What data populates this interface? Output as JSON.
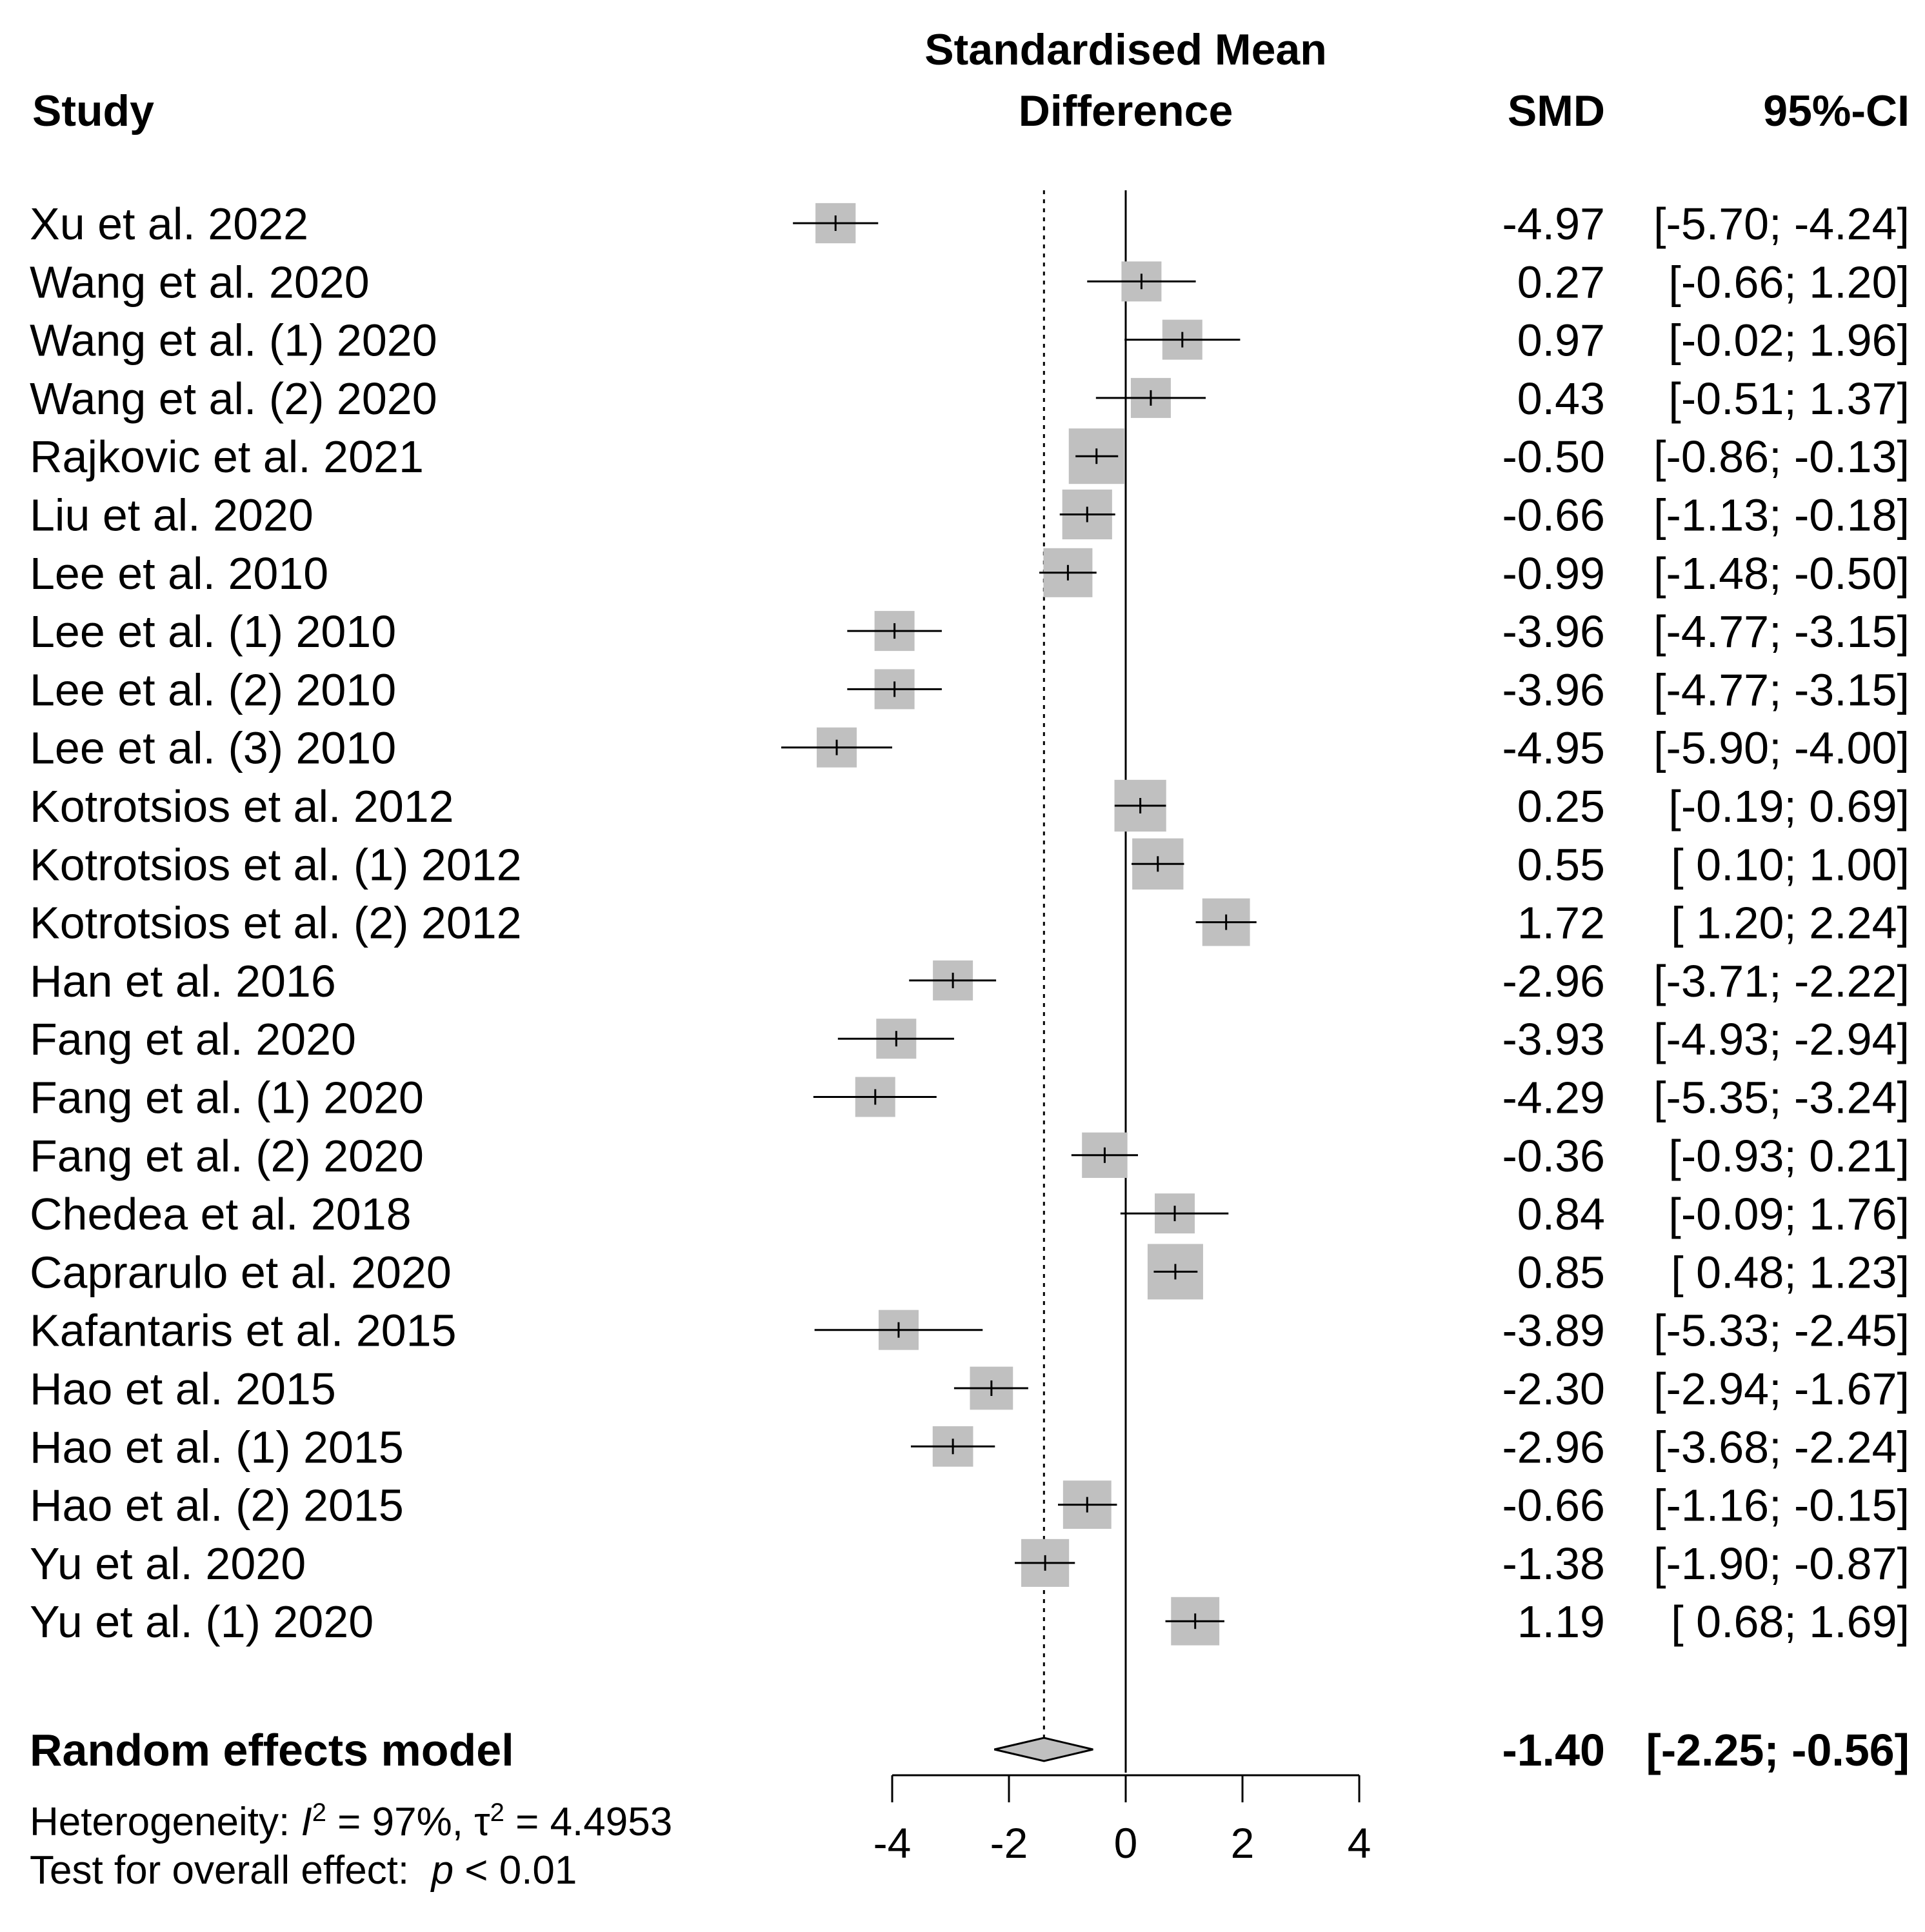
{
  "chart_data": {
    "type": "forest",
    "headers": {
      "study": "Study",
      "effect_line1": "Standardised Mean",
      "effect_line2": "Difference",
      "smd": "SMD",
      "ci": "95%-CI"
    },
    "x_ticks": [
      -4,
      -2,
      0,
      2,
      4
    ],
    "xlim": [
      -4,
      4
    ],
    "reference_line": 0,
    "pooled_line": -1.4,
    "studies": [
      {
        "label": "Xu et al. 2022",
        "smd": -4.97,
        "lower": -5.7,
        "upper": -4.24,
        "smd_text": "-4.97",
        "ci_text": "[-5.70; -4.24]"
      },
      {
        "label": "Wang et al. 2020",
        "smd": 0.27,
        "lower": -0.66,
        "upper": 1.2,
        "smd_text": "0.27",
        "ci_text": "[-0.66; 1.20]"
      },
      {
        "label": "Wang et al. (1) 2020",
        "smd": 0.97,
        "lower": -0.02,
        "upper": 1.96,
        "smd_text": "0.97",
        "ci_text": "[-0.02; 1.96]"
      },
      {
        "label": "Wang et al. (2) 2020",
        "smd": 0.43,
        "lower": -0.51,
        "upper": 1.37,
        "smd_text": "0.43",
        "ci_text": "[-0.51; 1.37]"
      },
      {
        "label": "Rajkovic et al. 2021",
        "smd": -0.5,
        "lower": -0.86,
        "upper": -0.13,
        "smd_text": "-0.50",
        "ci_text": "[-0.86; -0.13]"
      },
      {
        "label": "Liu et al. 2020",
        "smd": -0.66,
        "lower": -1.13,
        "upper": -0.18,
        "smd_text": "-0.66",
        "ci_text": "[-1.13; -0.18]"
      },
      {
        "label": "Lee et al. 2010",
        "smd": -0.99,
        "lower": -1.48,
        "upper": -0.5,
        "smd_text": "-0.99",
        "ci_text": "[-1.48; -0.50]"
      },
      {
        "label": "Lee et al. (1) 2010",
        "smd": -3.96,
        "lower": -4.77,
        "upper": -3.15,
        "smd_text": "-3.96",
        "ci_text": "[-4.77; -3.15]"
      },
      {
        "label": "Lee et al. (2) 2010",
        "smd": -3.96,
        "lower": -4.77,
        "upper": -3.15,
        "smd_text": "-3.96",
        "ci_text": "[-4.77; -3.15]"
      },
      {
        "label": "Lee et al. (3) 2010",
        "smd": -4.95,
        "lower": -5.9,
        "upper": -4.0,
        "smd_text": "-4.95",
        "ci_text": "[-5.90; -4.00]"
      },
      {
        "label": "Kotrotsios et al. 2012",
        "smd": 0.25,
        "lower": -0.19,
        "upper": 0.69,
        "smd_text": "0.25",
        "ci_text": "[-0.19; 0.69]"
      },
      {
        "label": "Kotrotsios et al. (1) 2012",
        "smd": 0.55,
        "lower": 0.1,
        "upper": 1.0,
        "smd_text": "0.55",
        "ci_text": "[ 0.10; 1.00]"
      },
      {
        "label": "Kotrotsios et al. (2) 2012",
        "smd": 1.72,
        "lower": 1.2,
        "upper": 2.24,
        "smd_text": "1.72",
        "ci_text": "[ 1.20; 2.24]"
      },
      {
        "label": "Han et al. 2016",
        "smd": -2.96,
        "lower": -3.71,
        "upper": -2.22,
        "smd_text": "-2.96",
        "ci_text": "[-3.71; -2.22]"
      },
      {
        "label": "Fang et al. 2020",
        "smd": -3.93,
        "lower": -4.93,
        "upper": -2.94,
        "smd_text": "-3.93",
        "ci_text": "[-4.93; -2.94]"
      },
      {
        "label": "Fang et al. (1) 2020",
        "smd": -4.29,
        "lower": -5.35,
        "upper": -3.24,
        "smd_text": "-4.29",
        "ci_text": "[-5.35; -3.24]"
      },
      {
        "label": "Fang et al. (2) 2020",
        "smd": -0.36,
        "lower": -0.93,
        "upper": 0.21,
        "smd_text": "-0.36",
        "ci_text": "[-0.93; 0.21]"
      },
      {
        "label": "Chedea et al. 2018",
        "smd": 0.84,
        "lower": -0.09,
        "upper": 1.76,
        "smd_text": "0.84",
        "ci_text": "[-0.09; 1.76]"
      },
      {
        "label": "Caprarulo et al. 2020",
        "smd": 0.85,
        "lower": 0.48,
        "upper": 1.23,
        "smd_text": "0.85",
        "ci_text": "[ 0.48; 1.23]"
      },
      {
        "label": "Kafantaris et al. 2015",
        "smd": -3.89,
        "lower": -5.33,
        "upper": -2.45,
        "smd_text": "-3.89",
        "ci_text": "[-5.33; -2.45]"
      },
      {
        "label": "Hao et al. 2015",
        "smd": -2.3,
        "lower": -2.94,
        "upper": -1.67,
        "smd_text": "-2.30",
        "ci_text": "[-2.94; -1.67]"
      },
      {
        "label": "Hao et al. (1) 2015",
        "smd": -2.96,
        "lower": -3.68,
        "upper": -2.24,
        "smd_text": "-2.96",
        "ci_text": "[-3.68; -2.24]"
      },
      {
        "label": "Hao et al. (2) 2015",
        "smd": -0.66,
        "lower": -1.16,
        "upper": -0.15,
        "smd_text": "-0.66",
        "ci_text": "[-1.16; -0.15]"
      },
      {
        "label": "Yu et al. 2020",
        "smd": -1.38,
        "lower": -1.9,
        "upper": -0.87,
        "smd_text": "-1.38",
        "ci_text": "[-1.90; -0.87]"
      },
      {
        "label": "Yu et al. (1) 2020",
        "smd": 1.19,
        "lower": 0.68,
        "upper": 1.69,
        "smd_text": "1.19",
        "ci_text": "[ 0.68; 1.69]"
      }
    ],
    "pooled": {
      "label": "Random effects model",
      "smd": -1.4,
      "lower": -2.25,
      "upper": -0.56,
      "smd_text": "-1.40",
      "ci_text": "[-2.25; -0.56]"
    },
    "heterogeneity": {
      "prefix": "Heterogeneity: ",
      "i2_symbol": "I",
      "i2_value": " = 97%, ",
      "tau_symbol": "τ",
      "tau_value": " = 4.4953"
    },
    "overall_test": {
      "prefix": "Test for overall effect:  ",
      "p_symbol": "p",
      "p_value": " < 0.01"
    },
    "colors": {
      "square_fill": "#c0c0c0",
      "line": "#000000",
      "diamond_fill": "#c0c0c0"
    }
  }
}
